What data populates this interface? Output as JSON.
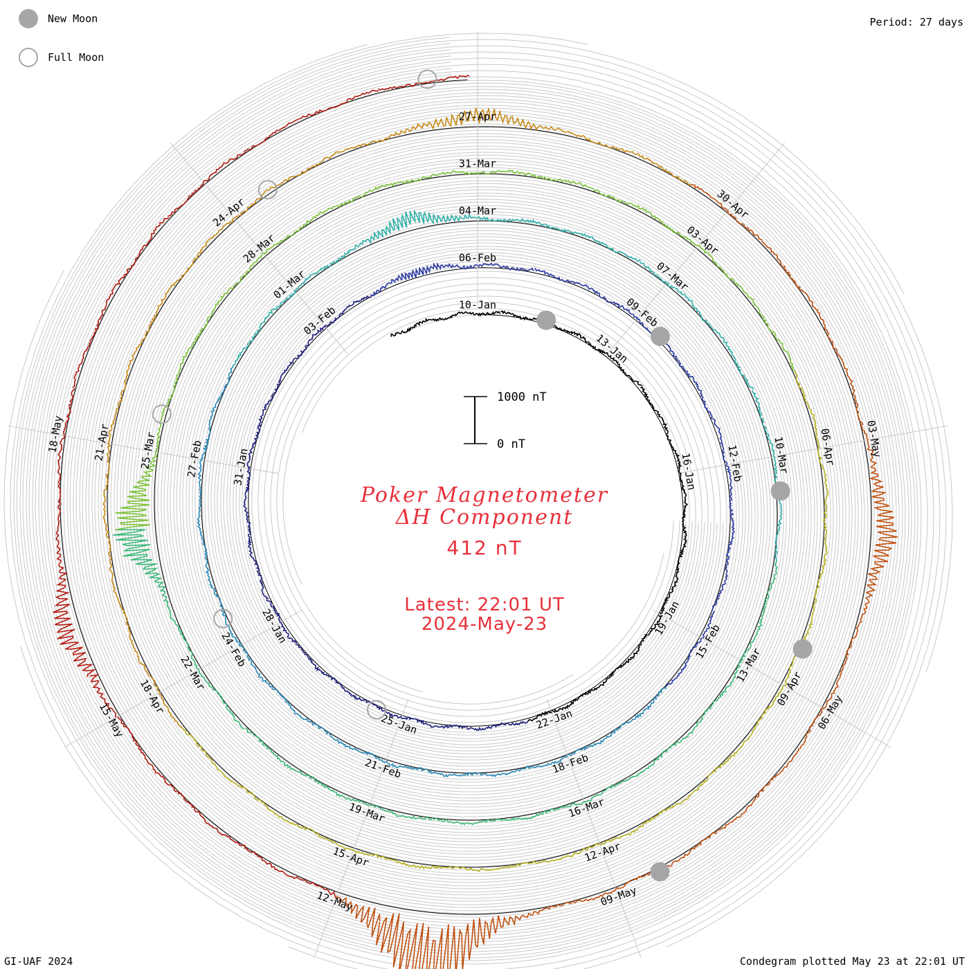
{
  "legend": {
    "new_moon_label": "New Moon",
    "full_moon_label": "Full Moon",
    "new_moon_color": "#a6a6a6",
    "full_moon_color": "#a6a6a6"
  },
  "header": {
    "period": "Period: 27 days"
  },
  "center": {
    "title_line1": "Poker Magnetometer",
    "title_line2": "ΔH Component",
    "current_value": "412 nT",
    "latest_time": "Latest: 22:01 UT",
    "latest_date": "2024-May-23",
    "text_color": "#e8303a"
  },
  "footer": {
    "left": "GI-UAF 2024",
    "right": "Condegram plotted May 23 at 22:01 UT"
  },
  "chart_data": {
    "type": "line",
    "subtype": "spiral-condegram",
    "period_days": 27,
    "scale_bar": {
      "top_label": "1000 nT",
      "bottom_label": "0 nT",
      "top_value": 1000,
      "bottom_value": 0
    },
    "grid": true,
    "rotations": [
      {
        "date_labels": [
          "10-Jan",
          "13-Jan",
          "16-Jan",
          "19-Jan",
          "22-Jan",
          "25-Jan",
          "28-Jan",
          "31-Jan",
          "03-Feb"
        ],
        "color": "#1a1a3a"
      },
      {
        "date_labels": [
          "06-Feb",
          "09-Feb",
          "12-Feb",
          "15-Feb",
          "18-Feb",
          "21-Feb",
          "24-Feb",
          "27-Feb",
          "01-Mar"
        ],
        "color": "#2a3aa0"
      },
      {
        "date_labels": [
          "04-Mar",
          "07-Mar",
          "10-Mar",
          "13-Mar",
          "16-Mar",
          "19-Mar",
          "22-Mar",
          "25-Mar",
          "28-Mar"
        ],
        "color": "#2fb0a8"
      },
      {
        "date_labels": [
          "31-Mar",
          "03-Apr",
          "06-Apr",
          "09-Apr",
          "12-Apr",
          "15-Apr",
          "18-Apr",
          "21-Apr",
          "24-Apr"
        ],
        "color": "#7cc23a"
      },
      {
        "date_labels": [
          "27-Apr",
          "30-Apr",
          "03-May",
          "06-May",
          "09-May",
          "12-May",
          "15-May",
          "18-May"
        ],
        "color": "#b8a020"
      }
    ],
    "trace_colors": [
      "#000000",
      "#1f1f7a",
      "#2a3aa0",
      "#2a8ab8",
      "#2fb0a8",
      "#3cb878",
      "#7cc23a",
      "#b8b020",
      "#c88a18",
      "#c05010",
      "#b01a10"
    ],
    "new_moons": [
      "11-Jan",
      "09-Feb",
      "10-Mar",
      "08-Apr",
      "08-May"
    ],
    "full_moons": [
      "25-Jan",
      "24-Feb",
      "25-Mar",
      "24-Apr",
      "23-May"
    ],
    "disturbances": [
      {
        "date": "05-Feb",
        "amplitude_nT": 150
      },
      {
        "date": "03-Mar",
        "amplitude_nT": 350
      },
      {
        "date": "24-Mar",
        "amplitude_nT": 900
      },
      {
        "date": "27-Apr",
        "amplitude_nT": 350
      },
      {
        "date": "04-May",
        "amplitude_nT": 500
      },
      {
        "date": "11-May",
        "amplitude_nT": 1700
      },
      {
        "date": "16-May",
        "amplitude_nT": 450
      }
    ]
  }
}
